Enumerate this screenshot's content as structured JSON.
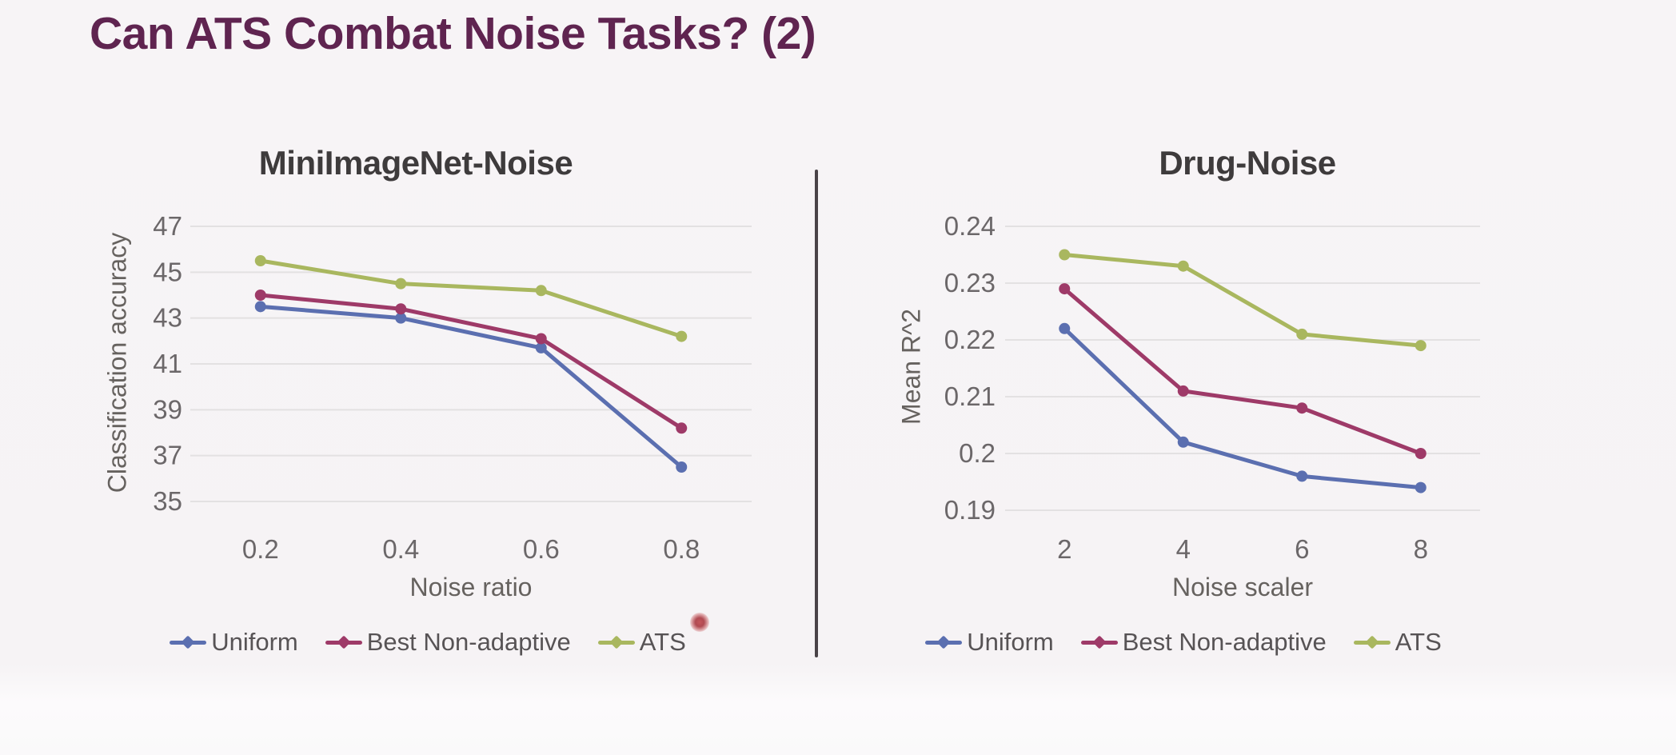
{
  "slide": {
    "title": "Can ATS Combat Noise Tasks? (2)",
    "title_color": "#5f2450",
    "background_color": "#f7f4f6",
    "divider_color": "#4a4348",
    "laser_pointer": {
      "present": true,
      "color": "#b04a52"
    }
  },
  "chart_data": [
    {
      "type": "line",
      "title": "MiniImageNet-Noise",
      "xlabel": "Noise ratio",
      "ylabel": "Classification accuracy",
      "categories": [
        "0.2",
        "0.4",
        "0.6",
        "0.8"
      ],
      "ylim": [
        35,
        47
      ],
      "yticks": [
        {
          "value": 47,
          "label": "47"
        },
        {
          "value": 45,
          "label": "45"
        },
        {
          "value": 43,
          "label": "43"
        },
        {
          "value": 41,
          "label": "41"
        },
        {
          "value": 39,
          "label": "39"
        },
        {
          "value": 37,
          "label": "37"
        },
        {
          "value": 35,
          "label": "35"
        }
      ],
      "grid": true,
      "legend_position": "bottom",
      "series": [
        {
          "name": "Uniform",
          "color": "#5b6fb0",
          "values": [
            43.5,
            43.0,
            41.7,
            36.5
          ]
        },
        {
          "name": "Best Non-adaptive",
          "color": "#9e3a68",
          "values": [
            44.0,
            43.4,
            42.1,
            38.2
          ]
        },
        {
          "name": "ATS",
          "color": "#a9b75f",
          "values": [
            45.5,
            44.5,
            44.2,
            42.2
          ]
        }
      ]
    },
    {
      "type": "line",
      "title": "Drug-Noise",
      "xlabel": "Noise scaler",
      "ylabel": "Mean R^2",
      "categories": [
        "2",
        "4",
        "6",
        "8"
      ],
      "ylim": [
        0.19,
        0.24
      ],
      "yticks": [
        {
          "value": 0.24,
          "label": "0.24"
        },
        {
          "value": 0.23,
          "label": "0.23"
        },
        {
          "value": 0.22,
          "label": "0.22"
        },
        {
          "value": 0.21,
          "label": "0.21"
        },
        {
          "value": 0.2,
          "label": "0.2"
        },
        {
          "value": 0.19,
          "label": "0.19"
        }
      ],
      "grid": true,
      "legend_position": "bottom",
      "series": [
        {
          "name": "Uniform",
          "color": "#5b6fb0",
          "values": [
            0.222,
            0.202,
            0.196,
            0.194
          ]
        },
        {
          "name": "Best Non-adaptive",
          "color": "#9e3a68",
          "values": [
            0.229,
            0.211,
            0.208,
            0.2
          ]
        },
        {
          "name": "ATS",
          "color": "#a9b75f",
          "values": [
            0.235,
            0.233,
            0.221,
            0.219
          ]
        }
      ]
    }
  ]
}
